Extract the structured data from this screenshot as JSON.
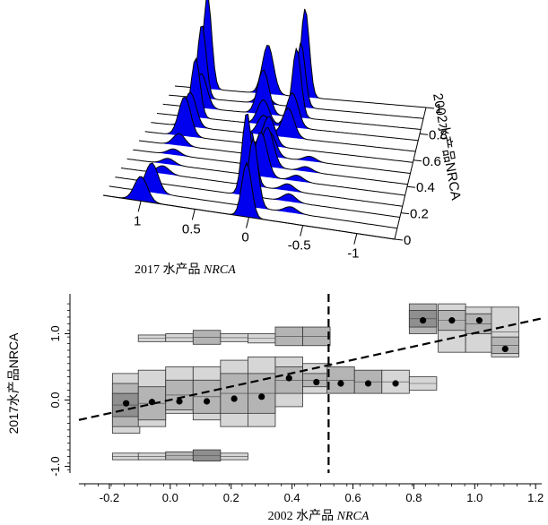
{
  "chart_data": [
    {
      "type": "ridgeline-3d",
      "x_label_prefix": "2017 水产品 ",
      "x_label_italic": "NRCA",
      "x_ticks": [
        "1",
        "0.5",
        "0",
        "-0.5",
        "-1"
      ],
      "x_tick_values": [
        1,
        0.5,
        0,
        -0.5,
        -1
      ],
      "y_label": "2002水产品NRCA",
      "y_ticks": [
        "1",
        "0.8",
        "0.6",
        "0.4",
        "0.2",
        "0"
      ],
      "y_tick_values": [
        1,
        0.8,
        0.6,
        0.4,
        0.2,
        0
      ],
      "fill_color": "#0000ee",
      "ridges": [
        {
          "peaks": [
            [
              1.0,
              0.25
            ],
            [
              0.02,
              0.55
            ]
          ]
        },
        {
          "peaks": [
            [
              0.95,
              0.3
            ],
            [
              0.0,
              0.7
            ],
            [
              -0.35,
              0.06
            ]
          ]
        },
        {
          "peaks": [
            [
              0.1,
              0.85
            ],
            [
              -0.3,
              0.08
            ]
          ]
        },
        {
          "peaks": [
            [
              0.95,
              0.08
            ],
            [
              0.1,
              0.55
            ],
            [
              -0.25,
              0.07
            ]
          ]
        },
        {
          "peaks": [
            [
              0.95,
              0.06
            ],
            [
              0.05,
              0.45
            ],
            [
              -0.3,
              0.06
            ]
          ]
        },
        {
          "peaks": [
            [
              0.95,
              0.06
            ],
            [
              0.03,
              0.4
            ],
            [
              -0.35,
              0.05
            ]
          ]
        },
        {
          "peaks": [
            [
              0.95,
              0.12
            ],
            [
              0.05,
              0.25
            ],
            [
              -0.35,
              0.05
            ]
          ]
        },
        {
          "peaks": [
            [
              0.95,
              0.4
            ],
            [
              0.1,
              0.3
            ]
          ]
        },
        {
          "peaks": [
            [
              0.95,
              0.35
            ],
            [
              0.2,
              0.2
            ],
            [
              -0.05,
              0.3
            ]
          ]
        },
        {
          "peaks": [
            [
              0.95,
              0.6
            ],
            [
              0.25,
              0.25
            ],
            [
              -0.05,
              0.35
            ]
          ]
        },
        {
          "peaks": [
            [
              0.95,
              0.35
            ],
            [
              0.3,
              0.45
            ],
            [
              -0.05,
              0.7
            ]
          ]
        },
        {
          "peaks": [
            [
              1.0,
              0.75
            ],
            [
              0.35,
              0.15
            ],
            [
              -0.05,
              0.65
            ]
          ]
        },
        {
          "peaks": [
            [
              1.0,
              0.95
            ],
            [
              0.35,
              0.5
            ],
            [
              -0.05,
              0.9
            ]
          ]
        }
      ]
    },
    {
      "type": "binned-boxplot",
      "x_label_prefix": "2002 水产品 ",
      "x_label_italic": "NRCA",
      "y_label": "2017水产品NRCA",
      "xlim": [
        -0.3,
        1.22
      ],
      "ylim": [
        -1.1,
        1.6
      ],
      "x_ticks": [
        -0.2,
        0.0,
        0.2,
        0.4,
        0.6,
        0.8,
        1.0,
        1.2
      ],
      "x_tick_labels": [
        "-0.2",
        "0.0",
        "0.2",
        "0.4",
        "0.6",
        "0.8",
        "1.0",
        "1.2"
      ],
      "y_ticks": [
        -1.0,
        0.0,
        1.0
      ],
      "y_tick_labels": [
        "-1.0",
        "0.0",
        "1.0"
      ],
      "vertical_line_x": 0.52,
      "trend_line": {
        "x": [
          -0.3,
          1.22
        ],
        "y": [
          -0.3,
          1.23
        ]
      },
      "bin_width": 0.09,
      "columns": [
        {
          "x": -0.145,
          "boxes": [
            {
              "y": [
                -0.5,
                0.4
              ],
              "shade": 1
            },
            {
              "y": [
                -0.4,
                0.25
              ],
              "shade": 2
            },
            {
              "y": [
                -0.25,
                0.1
              ],
              "shade": 3
            },
            {
              "y": [
                -0.9,
                -0.8
              ],
              "shade": 1
            }
          ],
          "median": -0.05
        },
        {
          "x": -0.06,
          "boxes": [
            {
              "y": [
                -0.4,
                0.45
              ],
              "shade": 1
            },
            {
              "y": [
                -0.3,
                0.2
              ],
              "shade": 2
            },
            {
              "y": [
                0.88,
                0.98
              ],
              "shade": 1
            },
            {
              "y": [
                -0.9,
                -0.8
              ],
              "shade": 1
            }
          ],
          "median": -0.03
        },
        {
          "x": 0.03,
          "boxes": [
            {
              "y": [
                -0.2,
                0.5
              ],
              "shade": 1
            },
            {
              "y": [
                -0.15,
                0.3
              ],
              "shade": 2
            },
            {
              "y": [
                0.88,
                1.0
              ],
              "shade": 1
            },
            {
              "y": [
                -0.9,
                -0.78
              ],
              "shade": 2
            }
          ],
          "median": -0.02
        },
        {
          "x": 0.12,
          "boxes": [
            {
              "y": [
                -0.3,
                0.5
              ],
              "shade": 1
            },
            {
              "y": [
                -0.2,
                0.3
              ],
              "shade": 2
            },
            {
              "y": [
                0.84,
                1.05
              ],
              "shade": 2
            },
            {
              "y": [
                -0.92,
                -0.75
              ],
              "shade": 3
            }
          ],
          "median": -0.02
        },
        {
          "x": 0.21,
          "boxes": [
            {
              "y": [
                -0.4,
                0.6
              ],
              "shade": 1
            },
            {
              "y": [
                -0.2,
                0.4
              ],
              "shade": 2
            },
            {
              "y": [
                0.88,
                1.0
              ],
              "shade": 1
            },
            {
              "y": [
                -0.9,
                -0.8
              ],
              "shade": 1
            }
          ],
          "median": 0.02
        },
        {
          "x": 0.3,
          "boxes": [
            {
              "y": [
                -0.4,
                0.65
              ],
              "shade": 1
            },
            {
              "y": [
                -0.2,
                0.4
              ],
              "shade": 2
            },
            {
              "y": [
                0.86,
                1.0
              ],
              "shade": 1
            }
          ],
          "median": 0.05
        },
        {
          "x": 0.39,
          "boxes": [
            {
              "y": [
                -0.1,
                0.65
              ],
              "shade": 1
            },
            {
              "y": [
                0.1,
                0.5
              ],
              "shade": 2
            },
            {
              "y": [
                0.82,
                1.1
              ],
              "shade": 2
            }
          ],
          "median": 0.33
        },
        {
          "x": 0.48,
          "boxes": [
            {
              "y": [
                0.1,
                0.55
              ],
              "shade": 1
            },
            {
              "y": [
                0.2,
                0.4
              ],
              "shade": 2
            },
            {
              "y": [
                0.82,
                1.1
              ],
              "shade": 2
            }
          ],
          "median": 0.27
        },
        {
          "x": 0.56,
          "boxes": [
            {
              "y": [
                0.1,
                0.5
              ],
              "shade": 2
            }
          ],
          "median": 0.25
        },
        {
          "x": 0.65,
          "boxes": [
            {
              "y": [
                0.1,
                0.45
              ],
              "shade": 2
            }
          ],
          "median": 0.25
        },
        {
          "x": 0.74,
          "boxes": [
            {
              "y": [
                0.1,
                0.45
              ],
              "shade": 1
            }
          ],
          "median": 0.25
        },
        {
          "x": 0.83,
          "boxes": [
            {
              "y": [
                0.15,
                0.35
              ],
              "shade": 1
            },
            {
              "y": [
                1.0,
                1.45
              ],
              "shade": 2
            },
            {
              "y": [
                1.1,
                1.35
              ],
              "shade": 3
            }
          ],
          "median": 1.2
        },
        {
          "x": 0.925,
          "boxes": [
            {
              "y": [
                0.72,
                1.45
              ],
              "shade": 1
            },
            {
              "y": [
                1.05,
                1.35
              ],
              "shade": 2
            }
          ],
          "median": 1.2
        },
        {
          "x": 1.015,
          "boxes": [
            {
              "y": [
                0.72,
                1.4
              ],
              "shade": 1
            },
            {
              "y": [
                1.0,
                1.3
              ],
              "shade": 2
            }
          ],
          "median": 1.2
        },
        {
          "x": 1.1,
          "boxes": [
            {
              "y": [
                0.65,
                1.4
              ],
              "shade": 1
            },
            {
              "y": [
                0.7,
                0.95
              ],
              "shade": 2
            }
          ],
          "median": 0.77
        }
      ]
    }
  ]
}
